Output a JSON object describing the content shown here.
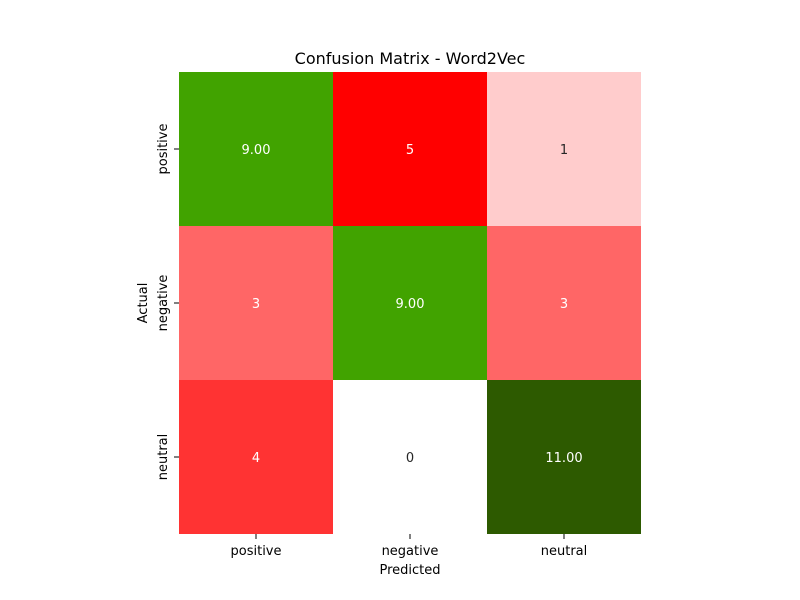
{
  "chart_data": {
    "type": "heatmap",
    "title": "Confusion Matrix - Word2Vec",
    "xlabel": "Predicted",
    "ylabel": "Actual",
    "x_categories": [
      "positive",
      "negative",
      "neutral"
    ],
    "y_categories": [
      "positive",
      "negative",
      "neutral"
    ],
    "values": [
      [
        9,
        5,
        1
      ],
      [
        3,
        9,
        3
      ],
      [
        4,
        0,
        11
      ]
    ],
    "cell_labels": [
      [
        "9.00",
        "5",
        "1"
      ],
      [
        "3",
        "9.00",
        "3"
      ],
      [
        "4",
        "0",
        "11.00"
      ]
    ],
    "cell_colors": [
      [
        "#41a300",
        "#ff0000",
        "#ffcccc"
      ],
      [
        "#ff6666",
        "#41a300",
        "#ff6666"
      ],
      [
        "#ff3333",
        "#ffffff",
        "#2d5a00"
      ]
    ],
    "colorbar": false,
    "grid": false
  }
}
